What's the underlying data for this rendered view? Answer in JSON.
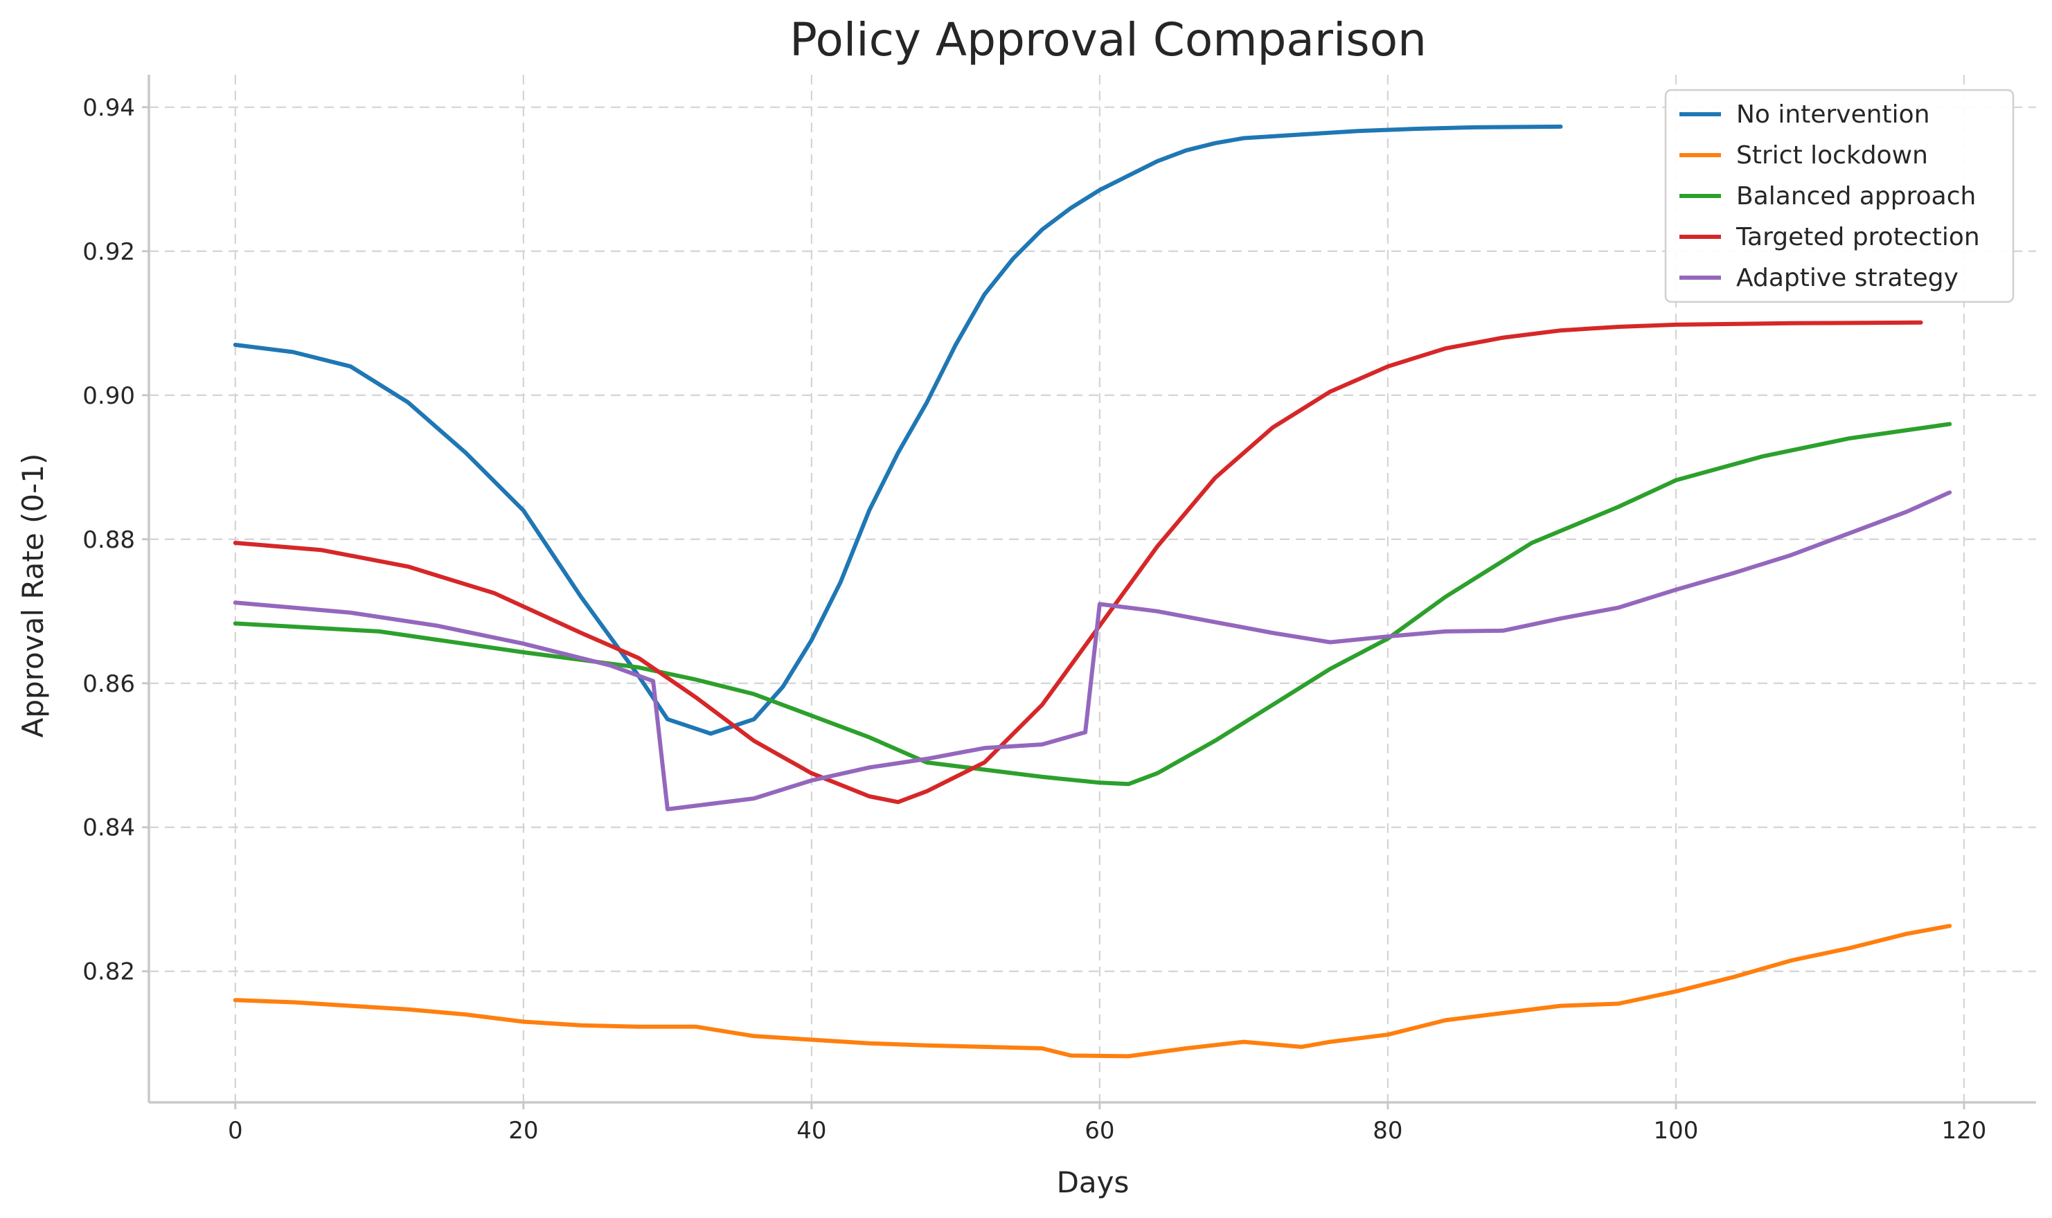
{
  "chart_data": {
    "type": "line",
    "title": "Policy Approval Comparison",
    "xlabel": "Days",
    "ylabel": "Approval Rate (0-1)",
    "xlim": [
      -6,
      125
    ],
    "ylim": [
      0.8018,
      0.9445
    ],
    "xticks": [
      0,
      20,
      40,
      60,
      80,
      100,
      120
    ],
    "xtick_labels": [
      "0",
      "20",
      "40",
      "60",
      "80",
      "100",
      "120"
    ],
    "yticks": [
      0.82,
      0.84,
      0.86,
      0.88,
      0.9,
      0.92,
      0.94
    ],
    "ytick_labels": [
      "0.82",
      "0.84",
      "0.86",
      "0.88",
      "0.90",
      "0.92",
      "0.94"
    ],
    "grid": true,
    "legend_position": "top-right",
    "series": [
      {
        "name": "No intervention",
        "color": "#1f77b4",
        "points": [
          [
            0,
            0.907
          ],
          [
            4,
            0.906
          ],
          [
            8,
            0.904
          ],
          [
            12,
            0.899
          ],
          [
            16,
            0.892
          ],
          [
            20,
            0.884
          ],
          [
            24,
            0.872
          ],
          [
            28,
            0.861
          ],
          [
            30,
            0.855
          ],
          [
            33,
            0.853
          ],
          [
            36,
            0.855
          ],
          [
            38,
            0.8595
          ],
          [
            40,
            0.866
          ],
          [
            42,
            0.874
          ],
          [
            44,
            0.884
          ],
          [
            46,
            0.892
          ],
          [
            48,
            0.899
          ],
          [
            50,
            0.907
          ],
          [
            52,
            0.914
          ],
          [
            54,
            0.919
          ],
          [
            56,
            0.923
          ],
          [
            58,
            0.926
          ],
          [
            60,
            0.9285
          ],
          [
            62,
            0.9305
          ],
          [
            64,
            0.9325
          ],
          [
            66,
            0.934
          ],
          [
            68,
            0.935
          ],
          [
            70,
            0.9357
          ],
          [
            74,
            0.9362
          ],
          [
            78,
            0.9367
          ],
          [
            82,
            0.937
          ],
          [
            86,
            0.9372
          ],
          [
            92,
            0.9373
          ]
        ]
      },
      {
        "name": "Strict lockdown",
        "color": "#ff7f0e",
        "points": [
          [
            0,
            0.816
          ],
          [
            4,
            0.8157
          ],
          [
            8,
            0.8152
          ],
          [
            12,
            0.8147
          ],
          [
            16,
            0.814
          ],
          [
            20,
            0.813
          ],
          [
            24,
            0.8125
          ],
          [
            28,
            0.8123
          ],
          [
            32,
            0.8123
          ],
          [
            36,
            0.811
          ],
          [
            40,
            0.8105
          ],
          [
            44,
            0.81
          ],
          [
            48,
            0.8097
          ],
          [
            52,
            0.8095
          ],
          [
            56,
            0.8093
          ],
          [
            58,
            0.8083
          ],
          [
            62,
            0.8082
          ],
          [
            66,
            0.8093
          ],
          [
            70,
            0.8102
          ],
          [
            74,
            0.8095
          ],
          [
            76,
            0.8102
          ],
          [
            80,
            0.8112
          ],
          [
            84,
            0.8132
          ],
          [
            88,
            0.8142
          ],
          [
            92,
            0.8152
          ],
          [
            96,
            0.8155
          ],
          [
            100,
            0.8172
          ],
          [
            104,
            0.8192
          ],
          [
            108,
            0.8215
          ],
          [
            112,
            0.8232
          ],
          [
            116,
            0.8252
          ],
          [
            119,
            0.8263
          ]
        ]
      },
      {
        "name": "Balanced approach",
        "color": "#2ca02c",
        "points": [
          [
            0,
            0.8683
          ],
          [
            10,
            0.8672
          ],
          [
            20,
            0.8643
          ],
          [
            28,
            0.8622
          ],
          [
            32,
            0.8605
          ],
          [
            36,
            0.8585
          ],
          [
            40,
            0.8555
          ],
          [
            44,
            0.8525
          ],
          [
            48,
            0.849
          ],
          [
            52,
            0.848
          ],
          [
            56,
            0.847
          ],
          [
            60,
            0.8462
          ],
          [
            62,
            0.846
          ],
          [
            64,
            0.8475
          ],
          [
            68,
            0.852
          ],
          [
            72,
            0.857
          ],
          [
            76,
            0.862
          ],
          [
            80,
            0.8662
          ],
          [
            84,
            0.872
          ],
          [
            90,
            0.8795
          ],
          [
            96,
            0.8845
          ],
          [
            100,
            0.8882
          ],
          [
            106,
            0.8915
          ],
          [
            112,
            0.894
          ],
          [
            119,
            0.896
          ]
        ]
      },
      {
        "name": "Targeted protection",
        "color": "#d62728",
        "points": [
          [
            0,
            0.8795
          ],
          [
            6,
            0.8785
          ],
          [
            12,
            0.8762
          ],
          [
            18,
            0.8725
          ],
          [
            24,
            0.867
          ],
          [
            28,
            0.8635
          ],
          [
            32,
            0.858
          ],
          [
            36,
            0.852
          ],
          [
            40,
            0.8475
          ],
          [
            44,
            0.8443
          ],
          [
            46,
            0.8435
          ],
          [
            48,
            0.845
          ],
          [
            52,
            0.849
          ],
          [
            56,
            0.857
          ],
          [
            60,
            0.868
          ],
          [
            64,
            0.879
          ],
          [
            68,
            0.8885
          ],
          [
            72,
            0.8955
          ],
          [
            76,
            0.9005
          ],
          [
            80,
            0.904
          ],
          [
            84,
            0.9065
          ],
          [
            88,
            0.908
          ],
          [
            92,
            0.909
          ],
          [
            96,
            0.9095
          ],
          [
            100,
            0.9098
          ],
          [
            108,
            0.91
          ],
          [
            117,
            0.9101
          ]
        ]
      },
      {
        "name": "Adaptive strategy",
        "color": "#9467bd",
        "points": [
          [
            0,
            0.8712
          ],
          [
            8,
            0.8698
          ],
          [
            14,
            0.868
          ],
          [
            20,
            0.8655
          ],
          [
            26,
            0.8625
          ],
          [
            29,
            0.8603
          ],
          [
            30,
            0.8425
          ],
          [
            32,
            0.843
          ],
          [
            36,
            0.844
          ],
          [
            40,
            0.8465
          ],
          [
            44,
            0.8483
          ],
          [
            48,
            0.8495
          ],
          [
            52,
            0.851
          ],
          [
            56,
            0.8515
          ],
          [
            59,
            0.8532
          ],
          [
            60,
            0.871
          ],
          [
            64,
            0.87
          ],
          [
            68,
            0.8685
          ],
          [
            72,
            0.867
          ],
          [
            76,
            0.8657
          ],
          [
            80,
            0.8665
          ],
          [
            84,
            0.8672
          ],
          [
            88,
            0.8673
          ],
          [
            92,
            0.869
          ],
          [
            96,
            0.8705
          ],
          [
            100,
            0.873
          ],
          [
            104,
            0.8753
          ],
          [
            108,
            0.8778
          ],
          [
            112,
            0.8808
          ],
          [
            116,
            0.8838
          ],
          [
            119,
            0.8865
          ]
        ]
      }
    ]
  }
}
